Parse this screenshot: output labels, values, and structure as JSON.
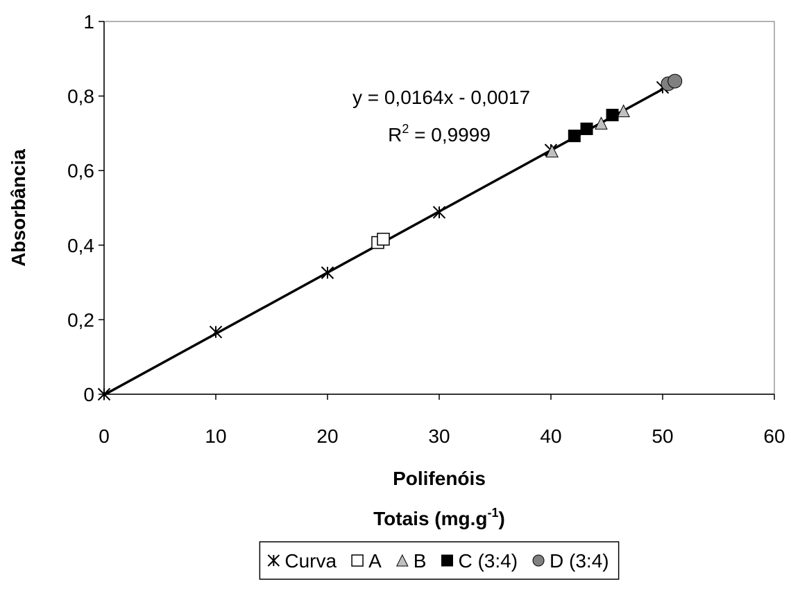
{
  "chart_data": {
    "type": "scatter",
    "xlabel": {
      "line1": "Polifenóis",
      "line2": "Totais (mg.g",
      "sup": "-1",
      "end": ")"
    },
    "ylabel": "Absorbância",
    "xlim": [
      0,
      60
    ],
    "xticks": [
      0,
      10,
      20,
      30,
      40,
      50,
      60
    ],
    "ylim": [
      0,
      1
    ],
    "yticks": [
      0,
      {
        "value": 0.2,
        "label": "0,2"
      },
      {
        "value": 0.4,
        "label": "0,4"
      },
      {
        "value": 0.6,
        "label": "0,6"
      },
      {
        "value": 0.8,
        "label": "0,8"
      },
      1
    ],
    "grid": false,
    "legend": "bottom",
    "series": [
      {
        "name": "Curva",
        "marker": "asterisk",
        "color": "#000000",
        "x": [
          0,
          10,
          20,
          30,
          40,
          50
        ],
        "values": [
          0,
          0.167,
          0.326,
          0.488,
          0.655,
          0.823
        ]
      },
      {
        "name": "A",
        "marker": "square-open",
        "color": "#000000",
        "x": [
          24.5,
          25.0
        ],
        "values": [
          0.407,
          0.416
        ]
      },
      {
        "name": "B",
        "marker": "triangle",
        "color": "#c0c0c0",
        "x": [
          40.1,
          44.5,
          46.5
        ],
        "values": [
          0.652,
          0.727,
          0.76
        ]
      },
      {
        "name": "C (3:4)",
        "marker": "square",
        "color": "#000000",
        "x": [
          42.1,
          43.2,
          45.5
        ],
        "values": [
          0.693,
          0.712,
          0.749
        ]
      },
      {
        "name": "D (3:4)",
        "marker": "circle",
        "color": "#808080",
        "x": [
          50.5,
          51.1
        ],
        "values": [
          0.833,
          0.84
        ]
      }
    ],
    "trendline": {
      "slope": 0.0164,
      "intercept": -0.0017,
      "x_range": [
        0,
        50
      ],
      "equation": "y = 0,0164x - 0,0017",
      "r2": {
        "base": "R",
        "sup": "2",
        "rest": " = 0,9999"
      }
    }
  }
}
